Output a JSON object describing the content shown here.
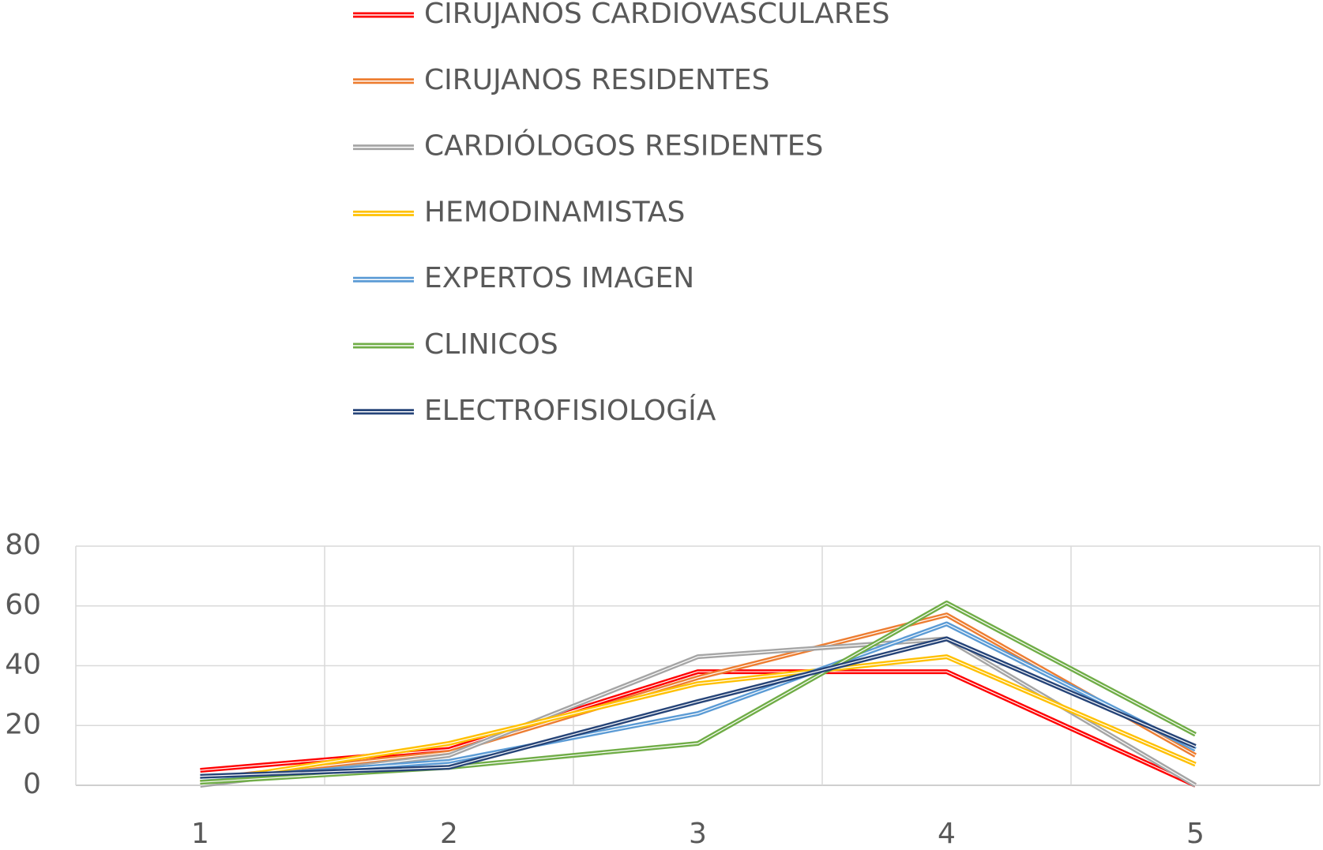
{
  "chart_data": {
    "type": "line",
    "categories": [
      "1",
      "2",
      "3",
      "4",
      "5"
    ],
    "series": [
      {
        "name": "CIRUJANOS CARDIOVASCULARES",
        "color": "#ff0000",
        "values": [
          5,
          12,
          38,
          38,
          0
        ]
      },
      {
        "name": "CIRUJANOS RESIDENTES",
        "color": "#ed7d31",
        "values": [
          2,
          11,
          36,
          57,
          10
        ]
      },
      {
        "name": "CARDIÓLOGOS RESIDENTES",
        "color": "#a5a5a5",
        "values": [
          0,
          10,
          43,
          49,
          0
        ]
      },
      {
        "name": "HEMODINAMISTAS",
        "color": "#ffc000",
        "values": [
          1,
          14,
          34,
          43,
          7
        ]
      },
      {
        "name": "EXPERTOS IMAGEN",
        "color": "#5b9bd5",
        "values": [
          2,
          8,
          24,
          54,
          12
        ]
      },
      {
        "name": "CLINICOS",
        "color": "#70ad47",
        "values": [
          1,
          6,
          14,
          61,
          17
        ]
      },
      {
        "name": "ELECTROFISIOLOGÍA",
        "color": "#264478",
        "values": [
          3,
          6,
          28,
          49,
          13
        ]
      }
    ],
    "ylim": [
      0,
      80
    ],
    "yticks": [
      0,
      20,
      40,
      60,
      80
    ],
    "grid": true,
    "legend": "top"
  }
}
